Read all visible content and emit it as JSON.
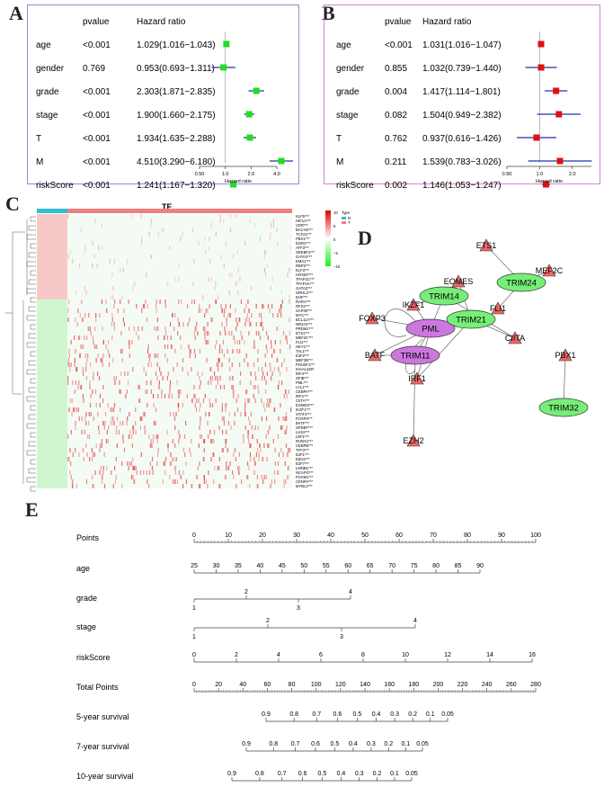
{
  "panel_letters": {
    "a": "A",
    "b": "B",
    "c": "C",
    "d": "D",
    "e": "E"
  },
  "colors": {
    "forest_a": "#22dd22",
    "forest_b": "#e01010",
    "ci_line": "#2233aa",
    "border_a": "#9988cc",
    "border_b": "#cc88cc",
    "heat_hi": "#e83030",
    "heat_lo": "#22ee22",
    "pml_node": "#cc77dd",
    "trim_node": "#77ee77",
    "tf_node": "#ee6666",
    "bar_n": "#2bc0d0",
    "bar_t": "#f08080"
  },
  "chart_data": [
    {
      "type": "forest",
      "id": "A",
      "headers": {
        "pvalue": "pvalue",
        "hr": "Hazard ratio"
      },
      "rows": [
        {
          "label": "age",
          "pvalue": "<0.001",
          "hr_text": "1.029(1.016−1.043)",
          "hr": 1.029,
          "lo": 1.016,
          "hi": 1.043
        },
        {
          "label": "gender",
          "pvalue": "0.769",
          "hr_text": "0.953(0.693−1.311)",
          "hr": 0.953,
          "lo": 0.693,
          "hi": 1.311
        },
        {
          "label": "grade",
          "pvalue": "<0.001",
          "hr_text": "2.303(1.871−2.835)",
          "hr": 2.303,
          "lo": 1.871,
          "hi": 2.835
        },
        {
          "label": "stage",
          "pvalue": "<0.001",
          "hr_text": "1.900(1.660−2.175)",
          "hr": 1.9,
          "lo": 1.66,
          "hi": 2.175
        },
        {
          "label": "T",
          "pvalue": "<0.001",
          "hr_text": "1.934(1.635−2.288)",
          "hr": 1.934,
          "lo": 1.635,
          "hi": 2.288
        },
        {
          "label": "M",
          "pvalue": "<0.001",
          "hr_text": "4.510(3.290−6.180)",
          "hr": 4.51,
          "lo": 3.29,
          "hi": 6.18
        },
        {
          "label": "riskScore",
          "pvalue": "<0.001",
          "hr_text": "1.241(1.167−1.320)",
          "hr": 1.241,
          "lo": 1.167,
          "hi": 1.32
        }
      ],
      "xscale": "log2",
      "xlim": [
        0.5,
        4.0
      ],
      "ticks": [
        {
          "v": 0.5,
          "t": "0.50"
        },
        {
          "v": 1.0,
          "t": "1.0"
        },
        {
          "v": 2.0,
          "t": "2.0"
        },
        {
          "v": 4.0,
          "t": "4.0"
        }
      ],
      "xlabel": "Hazard ratio"
    },
    {
      "type": "forest",
      "id": "B",
      "headers": {
        "pvalue": "pvalue",
        "hr": "Hazard ratio"
      },
      "rows": [
        {
          "label": "age",
          "pvalue": "<0.001",
          "hr_text": "1.031(1.016−1.047)",
          "hr": 1.031,
          "lo": 1.016,
          "hi": 1.047
        },
        {
          "label": "gender",
          "pvalue": "0.855",
          "hr_text": "1.032(0.739−1.440)",
          "hr": 1.032,
          "lo": 0.739,
          "hi": 1.44
        },
        {
          "label": "grade",
          "pvalue": "0.004",
          "hr_text": "1.417(1.114−1.801)",
          "hr": 1.417,
          "lo": 1.114,
          "hi": 1.801
        },
        {
          "label": "stage",
          "pvalue": "0.082",
          "hr_text": "1.504(0.949−2.382)",
          "hr": 1.504,
          "lo": 0.949,
          "hi": 2.382
        },
        {
          "label": "T",
          "pvalue": "0.762",
          "hr_text": "0.937(0.616−1.426)",
          "hr": 0.937,
          "lo": 0.616,
          "hi": 1.426
        },
        {
          "label": "M",
          "pvalue": "0.211",
          "hr_text": "1.539(0.783−3.026)",
          "hr": 1.539,
          "lo": 0.783,
          "hi": 3.026
        },
        {
          "label": "riskScore",
          "pvalue": "0.002",
          "hr_text": "1.146(1.053−1.247)",
          "hr": 1.146,
          "lo": 1.053,
          "hi": 1.247
        }
      ],
      "xscale": "log2",
      "xlim": [
        0.5,
        3.0
      ],
      "ticks": [
        {
          "v": 0.5,
          "t": "0.50"
        },
        {
          "v": 1.0,
          "t": "1.0"
        },
        {
          "v": 2.0,
          "t": "2.0"
        }
      ],
      "xlabel": "Hazard ratio"
    },
    {
      "type": "heatmap",
      "id": "C",
      "title": "TF",
      "legend_title": "Type",
      "legend_items": [
        "N",
        "T"
      ],
      "scale_ticks": [
        "10",
        "5",
        "0",
        "−5",
        "−10"
      ],
      "genes": [
        "KLF5***",
        "HIF1A***",
        "VDR***",
        "BACH2***",
        "TCF21***",
        "PBX1***",
        "EGR2***",
        "ATF3***",
        "SREBF2***",
        "GATA2***",
        "EMX1***",
        "RBP2***",
        "ELF3***",
        "HOXB7***",
        "TFAP2C***",
        "TFAP2A***",
        "GATA3***",
        "GRHL2***",
        "EHF***",
        "RARA***",
        "RFX2***",
        "SAP30***",
        "MYC***",
        "BCL11A***",
        "NR4A2***",
        "PRDM1***",
        "ETS1***",
        "MEF2C***",
        "FLI1***",
        "HEY1***",
        "TAL1***",
        "E2F2***",
        "MEF2B***",
        "POU5F1***",
        "KIAA1429*",
        "IRF4***",
        "SPIB***",
        "PML***",
        "LYL1***",
        "CEBPA***",
        "IRF1***",
        "CIITA***",
        "EOMES***",
        "IKZF1***",
        "STAT4***",
        "FOXP3***",
        "BATF***",
        "SPDEF***",
        "LHX2***",
        "LEF1***",
        "RUNX1***",
        "CEBPB***",
        "TFF3***",
        "E2F1***",
        "EZH2***",
        "E2F7***",
        "LMNB1***",
        "NCAPG***",
        "FOXM1***",
        "CENPA***",
        "MYBL2***"
      ]
    },
    {
      "type": "network",
      "id": "D",
      "nodes": [
        {
          "id": "PML",
          "kind": "hub"
        },
        {
          "id": "TRIM11",
          "kind": "hub"
        },
        {
          "id": "TRIM14",
          "kind": "trim"
        },
        {
          "id": "TRIM21",
          "kind": "trim"
        },
        {
          "id": "TRIM24",
          "kind": "trim"
        },
        {
          "id": "TRIM32",
          "kind": "trim"
        },
        {
          "id": "ETS1",
          "kind": "tf"
        },
        {
          "id": "MEF2C",
          "kind": "tf"
        },
        {
          "id": "FLI1",
          "kind": "tf"
        },
        {
          "id": "EOMES",
          "kind": "tf"
        },
        {
          "id": "IKZF1",
          "kind": "tf"
        },
        {
          "id": "FOXP3",
          "kind": "tf"
        },
        {
          "id": "BATF",
          "kind": "tf"
        },
        {
          "id": "IRF1",
          "kind": "tf"
        },
        {
          "id": "CIITA",
          "kind": "tf"
        },
        {
          "id": "EZH2",
          "kind": "tf"
        },
        {
          "id": "PBX1",
          "kind": "tf"
        }
      ],
      "edges": [
        [
          "ETS1",
          "TRIM24"
        ],
        [
          "MEF2C",
          "TRIM24"
        ],
        [
          "FLI1",
          "TRIM24"
        ],
        [
          "EOMES",
          "TRIM14"
        ],
        [
          "EOMES",
          "TRIM21"
        ],
        [
          "IKZF1",
          "TRIM14"
        ],
        [
          "IKZF1",
          "PML"
        ],
        [
          "FOXP3",
          "PML"
        ],
        [
          "BATF",
          "PML"
        ],
        [
          "BATF",
          "TRIM11"
        ],
        [
          "PML",
          "TRIM14"
        ],
        [
          "PML",
          "TRIM21"
        ],
        [
          "PML",
          "TRIM11"
        ],
        [
          "TRIM14",
          "CIITA"
        ],
        [
          "TRIM21",
          "CIITA"
        ],
        [
          "TRIM21",
          "IRF1"
        ],
        [
          "IRF1",
          "PML"
        ],
        [
          "TRIM11",
          "EZH2"
        ],
        [
          "PBX1",
          "TRIM32"
        ]
      ]
    },
    {
      "type": "nomogram",
      "id": "E",
      "rows": [
        {
          "label": "Points",
          "ticks": [
            "0",
            "10",
            "20",
            "30",
            "40",
            "50",
            "60",
            "70",
            "80",
            "90",
            "100"
          ]
        },
        {
          "label": "age",
          "ticks": [
            "25",
            "30",
            "35",
            "40",
            "45",
            "50",
            "55",
            "60",
            "65",
            "70",
            "75",
            "80",
            "85",
            "90"
          ]
        },
        {
          "label": "grade",
          "top": [
            "2",
            "4"
          ],
          "bottom": [
            "1",
            "3"
          ]
        },
        {
          "label": "stage",
          "top": [
            "2",
            "4"
          ],
          "bottom": [
            "1",
            "3"
          ]
        },
        {
          "label": "riskScore",
          "ticks": [
            "0",
            "2",
            "4",
            "6",
            "8",
            "10",
            "12",
            "14",
            "16"
          ]
        },
        {
          "label": "Total Points",
          "ticks": [
            "0",
            "20",
            "40",
            "60",
            "80",
            "100",
            "120",
            "140",
            "160",
            "180",
            "200",
            "220",
            "240",
            "260",
            "280"
          ]
        },
        {
          "label": "5-year survival",
          "ticks": [
            "0.9",
            "0.8",
            "0.7",
            "0.6",
            "0.5",
            "0.4",
            "0.3",
            "0.2",
            "0.1",
            "0.05"
          ]
        },
        {
          "label": "7-year survival",
          "ticks": [
            "0.9",
            "0.8",
            "0.7",
            "0.6",
            "0.5",
            "0.4",
            "0.3",
            "0.2",
            "0.1",
            "0.05"
          ]
        },
        {
          "label": "10-year survival",
          "ticks": [
            "0.9",
            "0.8",
            "0.7",
            "0.6",
            "0.5",
            "0.4",
            "0.3",
            "0.2",
            "0.1",
            "0.05"
          ]
        }
      ]
    }
  ]
}
